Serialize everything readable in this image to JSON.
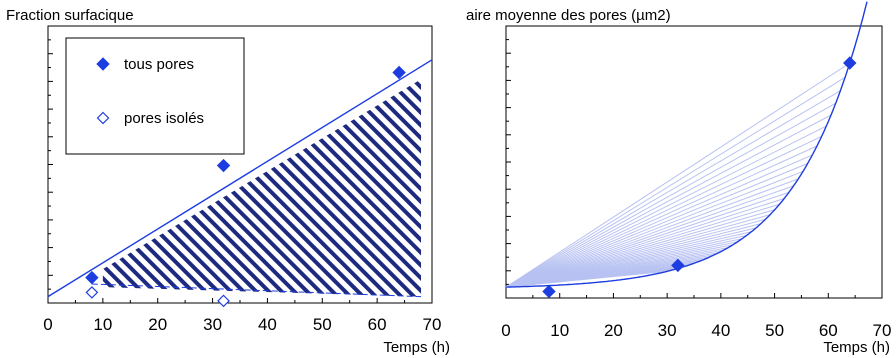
{
  "chart_data": [
    {
      "type": "scatter",
      "title": "",
      "ylabel": "Fraction surfacique",
      "xlabel": "Temps (h)",
      "xlim": [
        0,
        70
      ],
      "x_ticks": [
        "0",
        "10",
        "20",
        "30",
        "40",
        "50",
        "60",
        "70"
      ],
      "legend": {
        "placement": "top-left",
        "entries": [
          "tous pores",
          "pores isolés"
        ]
      },
      "series": [
        {
          "name": "tous pores",
          "marker": "filled-diamond",
          "x": [
            8,
            32,
            64
          ],
          "y": [
            0.045,
            0.31,
            0.53
          ]
        },
        {
          "name": "pores isolés",
          "marker": "open-diamond",
          "x": [
            8,
            32
          ],
          "y": [
            0.01,
            -0.01
          ]
        }
      ],
      "fit_lines": {
        "tous_pores": {
          "x": [
            0,
            70
          ],
          "y": [
            0.0,
            0.56
          ]
        },
        "pores_isoles": {
          "x": [
            8,
            32
          ],
          "y": [
            0.03,
            0.0
          ]
        }
      },
      "hatched_region": {
        "x_range": [
          10,
          68
        ]
      },
      "color": "#1e3de0"
    },
    {
      "type": "scatter",
      "title": "",
      "ylabel": "aire moyenne des pores (µm2)",
      "xlabel": "Temps (h)",
      "xlim": [
        0,
        70
      ],
      "x_ticks": [
        "0",
        "10",
        "20",
        "30",
        "40",
        "50",
        "60",
        "70"
      ],
      "series": [
        {
          "name": "",
          "marker": "filled-diamond",
          "x": [
            8,
            32,
            64
          ],
          "y": [
            -0.2,
            1.0,
            10.3
          ]
        }
      ],
      "fit_curve": {
        "type": "exponential"
      },
      "fan_lines_count": 40,
      "color": "#1e3de0",
      "fan_color": "#b8c2f2"
    }
  ]
}
